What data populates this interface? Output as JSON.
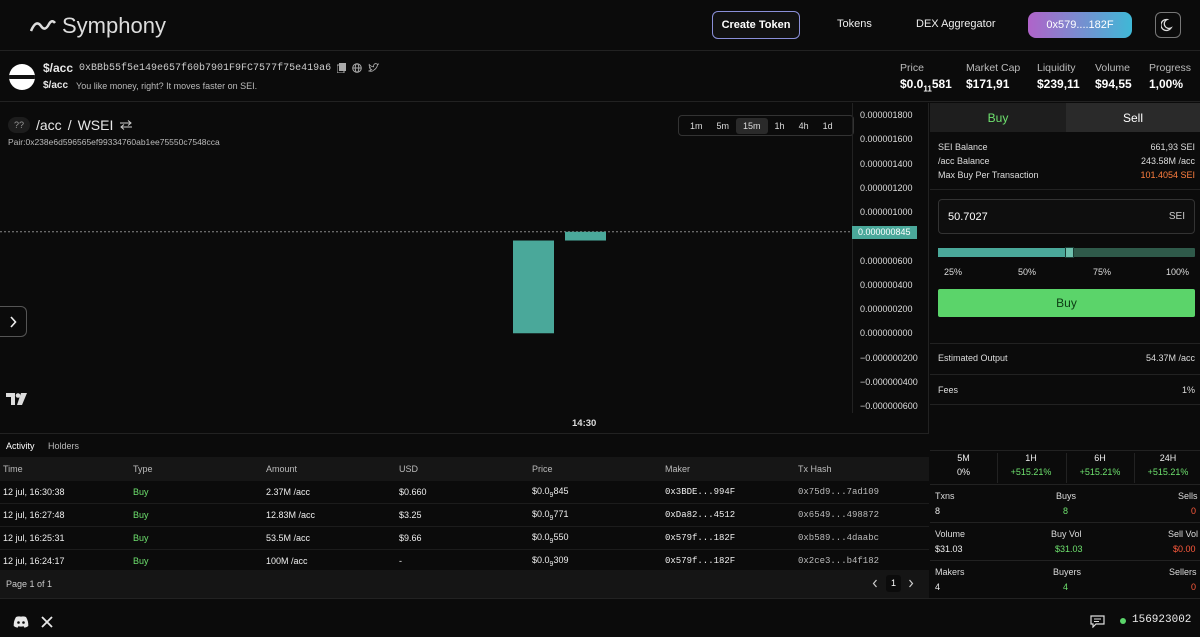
{
  "brand": {
    "name": "Symphony"
  },
  "nav": {
    "create_token": "Create Token",
    "tokens": "Tokens",
    "dex_aggregator": "DEX Aggregator",
    "wallet": "0x579....182F"
  },
  "token": {
    "symbol": "$/acc",
    "address": "0xBBb55f5e149e657f60b7901F9FC7577f75e419a6",
    "description": "You like money, right? It moves faster on SEI.",
    "price_label": "Price",
    "price_value": "$0.0",
    "price_sub": "11",
    "price_tail": "581",
    "mcap_label": "Market Cap",
    "mcap_value": "$171,91",
    "liq_label": "Liquidity",
    "liq_value": "$239,11",
    "vol_label": "Volume",
    "vol_value": "$94,55",
    "prog_label": "Progress",
    "prog_value": "1,00%"
  },
  "chart": {
    "unknown_icon": "??",
    "pair_base": "/acc",
    "pair_sep": "/",
    "pair_quote": "WSEI",
    "pair_address": "Pair:0x238e6d596565ef99334760ab1ee75550c7548cca",
    "timeframes": [
      "1m",
      "5m",
      "15m",
      "1h",
      "4h",
      "1d"
    ],
    "active_timeframe": "15m",
    "time_label": "14:30",
    "current_price_label": "0.000000845",
    "brand_mark": "TV"
  },
  "chart_data": {
    "type": "candlestick",
    "y_ticks": [
      "0.000001800",
      "0.000001600",
      "0.000001400",
      "0.000001200",
      "0.000001000",
      "0.000000800",
      "0.000000600",
      "0.000000400",
      "0.000000200",
      "0.000000000",
      "−0.000000200",
      "−0.000000400",
      "−0.000000600"
    ],
    "ylim": [
      -6e-07,
      1.8e-06
    ],
    "x_ticks": [
      "14:30"
    ],
    "candles": [
      {
        "open": 8e-09,
        "close": 7.73e-07,
        "high": 7.73e-07,
        "low": 8e-09
      },
      {
        "open": 7.73e-07,
        "close": 8.45e-07,
        "high": 8.45e-07,
        "low": 7.73e-07
      }
    ],
    "last_price": 8.45e-07
  },
  "activity": {
    "tab_activity": "Activity",
    "tab_holders": "Holders",
    "columns": [
      "Time",
      "Type",
      "Amount",
      "USD",
      "Price",
      "Maker",
      "Tx Hash"
    ],
    "rows": [
      {
        "time": "12 jul, 16:30:38",
        "type": "Buy",
        "amount": "2.37M /acc",
        "usd": "$0.660",
        "price": "$0.0",
        "price_sub": "9",
        "price_tail": "845",
        "maker": "0x3BDE...994F",
        "tx": "0x75d9...7ad109"
      },
      {
        "time": "12 jul, 16:27:48",
        "type": "Buy",
        "amount": "12.83M /acc",
        "usd": "$3.25",
        "price": "$0.0",
        "price_sub": "9",
        "price_tail": "771",
        "maker": "0xDa82...4512",
        "tx": "0x6549...498872"
      },
      {
        "time": "12 jul, 16:25:31",
        "type": "Buy",
        "amount": "53.5M /acc",
        "usd": "$9.66",
        "price": "$0.0",
        "price_sub": "9",
        "price_tail": "550",
        "maker": "0x579f...182F",
        "tx": "0xb589...4daabc"
      },
      {
        "time": "12 jul, 16:24:17",
        "type": "Buy",
        "amount": "100M /acc",
        "usd": "-",
        "price": "$0.0",
        "price_sub": "9",
        "price_tail": "309",
        "maker": "0x579f...182F",
        "tx": "0x2ce3...b4f182"
      }
    ],
    "page_text": "Page 1 of 1",
    "page_num": "1"
  },
  "trade": {
    "buy_tab": "Buy",
    "sell_tab": "Sell",
    "sei_balance_label": "SEI Balance",
    "sei_balance": "661,93 SEI",
    "acc_balance_label": "/acc Balance",
    "acc_balance": "243.58M /acc",
    "max_buy_label": "Max Buy Per Transaction",
    "max_buy": "101.4054 SEI",
    "amount_value": "50.7027",
    "amount_unit": "SEI",
    "slider_fraction": 0.5,
    "pct_labels": [
      "25%",
      "50%",
      "75%",
      "100%"
    ],
    "buy_button": "Buy",
    "est_output_label": "Estimated Output",
    "est_output": "54.37M /acc",
    "fees_label": "Fees",
    "fees": "1%",
    "periods": [
      {
        "label": "5M",
        "value": "0%"
      },
      {
        "label": "1H",
        "value": "+515.21%"
      },
      {
        "label": "6H",
        "value": "+515.21%"
      },
      {
        "label": "24H",
        "value": "+515.21%"
      }
    ],
    "txns_label": "Txns",
    "txns": "8",
    "buys_label": "Buys",
    "buys": "8",
    "sells_label": "Sells",
    "sells": "0",
    "volume_label": "Volume",
    "volume": "$31.03",
    "buy_vol_label": "Buy Vol",
    "buy_vol": "$31.03",
    "sell_vol_label": "Sell Vol",
    "sell_vol": "$0.00",
    "makers_label": "Makers",
    "makers": "4",
    "buyers_label": "Buyers",
    "buyers": "4",
    "sellers_label": "Sellers",
    "sellers": "0"
  },
  "footer": {
    "block_number": "156923002"
  },
  "colors": {
    "accent_green": "#5bd46a",
    "candle": "#4aa89a",
    "danger": "#ff5a3c"
  }
}
